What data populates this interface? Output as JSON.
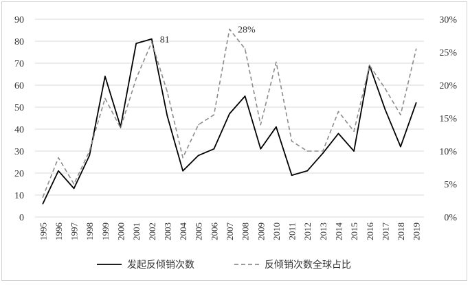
{
  "chart_data": {
    "type": "line",
    "x": [
      "1995",
      "1996",
      "1997",
      "1998",
      "1999",
      "2000",
      "2001",
      "2002",
      "2003",
      "2004",
      "2005",
      "2006",
      "2007",
      "2008",
      "2009",
      "2010",
      "2011",
      "2012",
      "2013",
      "2014",
      "2015",
      "2016",
      "2017",
      "2018",
      "2019"
    ],
    "series": [
      {
        "name": "发起反倾销次数",
        "axis": "left",
        "style": "solid",
        "color": "#000000",
        "values": [
          6,
          21,
          13,
          28,
          64,
          41,
          79,
          81,
          46,
          21,
          28,
          31,
          47,
          55,
          31,
          41,
          19,
          21,
          29,
          38,
          30,
          69,
          49,
          32,
          52
        ]
      },
      {
        "name": "反倾销次数全球占比",
        "axis": "right",
        "style": "dashed",
        "color": "#8c8c8c",
        "unit": "%",
        "values": [
          3,
          9,
          5,
          10,
          18,
          13.5,
          21,
          26.5,
          19,
          9,
          14,
          15.5,
          28.5,
          25.5,
          14,
          23.5,
          11.5,
          10,
          10,
          16,
          13,
          23,
          19.5,
          15.5,
          25.5
        ]
      }
    ],
    "y_left": {
      "min": 0,
      "max": 90,
      "ticks": [
        "0",
        "10",
        "20",
        "30",
        "40",
        "50",
        "60",
        "70",
        "80",
        "90"
      ]
    },
    "y_right": {
      "min": 0,
      "max": 30,
      "ticks": [
        "0%",
        "5%",
        "10%",
        "15%",
        "20%",
        "25%",
        "30%"
      ]
    },
    "annotations": [
      {
        "text": "81",
        "series": 0,
        "index": 7
      },
      {
        "text": "28%",
        "series": 1,
        "index": 12
      }
    ],
    "grid": true,
    "legend": "bottom"
  }
}
